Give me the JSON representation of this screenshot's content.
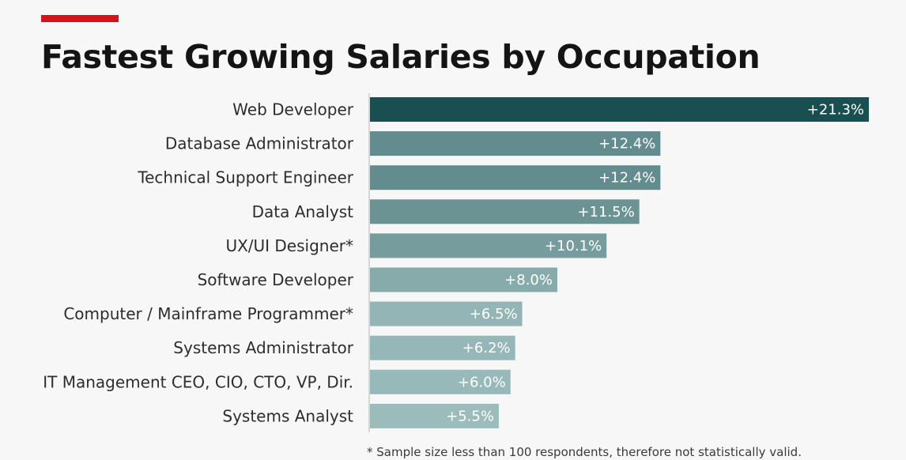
{
  "colors": {
    "accent": "#d8111a",
    "bar_dark": "#1a4f52",
    "bar_light": "#9cbcbc",
    "axis": "#b5b5b5"
  },
  "title": "Fastest Growing Salaries by Occupation",
  "footnote": "* Sample size less than 100 respondents, therefore not statistically valid.",
  "chart_data": {
    "type": "bar",
    "orientation": "horizontal",
    "title": "Fastest Growing Salaries by Occupation",
    "xlabel": "",
    "ylabel": "",
    "unit": "%",
    "xlim": [
      0,
      21.3
    ],
    "grid": false,
    "categories": [
      "Web Developer",
      "Database Administrator",
      "Technical Support Engineer",
      "Data Analyst",
      "UX/UI Designer*",
      "Software Developer",
      "Computer / Mainframe Programmer*",
      "Systems Administrator",
      "IT Management CEO, CIO, CTO, VP, Dir.",
      "Systems Analyst"
    ],
    "values": [
      21.3,
      12.4,
      12.4,
      11.5,
      10.1,
      8.0,
      6.5,
      6.2,
      6.0,
      5.5
    ],
    "value_labels": [
      "+21.3%",
      "+12.4%",
      "+12.4%",
      "+11.5%",
      "+10.1%",
      "+8.0%",
      "+6.5%",
      "+6.2%",
      "+6.0%",
      "+5.5%"
    ]
  }
}
